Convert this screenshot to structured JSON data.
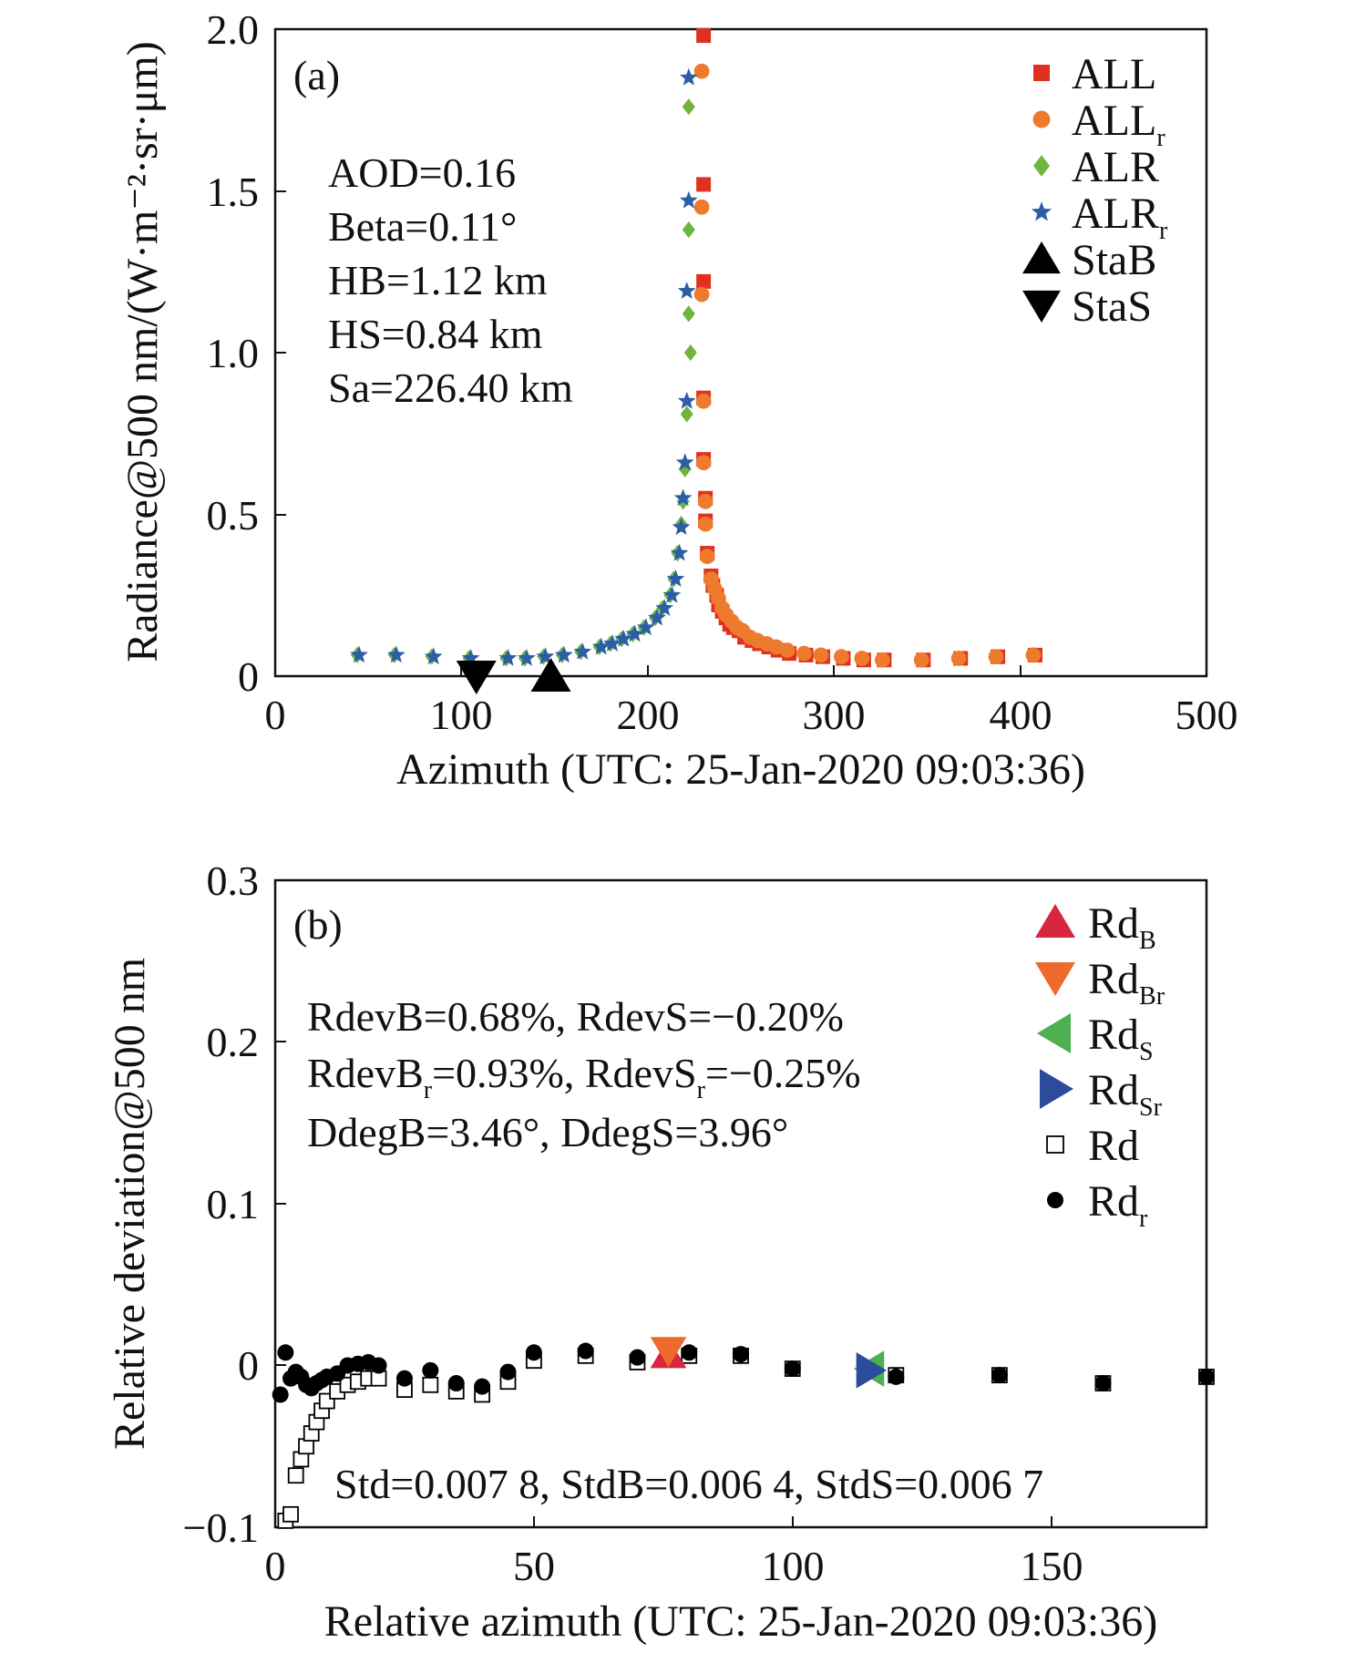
{
  "chart_data": [
    {
      "type": "scatter",
      "panel_label": "(a)",
      "xlabel": "Azimuth (UTC: 25-Jan-2020 09:03:36)",
      "ylabel": "Radiance@500 nm/(W·m⁻²·sr·μm)",
      "xlim": [
        0,
        500
      ],
      "ylim": [
        0,
        2.0
      ],
      "xticks": [
        "0",
        "100",
        "200",
        "300",
        "400",
        "500"
      ],
      "yticks": [
        "0",
        "0.5",
        "1.0",
        "1.5",
        "2.0"
      ],
      "grid": false,
      "legend_position": "top-right",
      "annotations": [
        "AOD=0.16",
        "Beta=0.11°",
        "HB=1.12 km",
        "HS=0.84 km",
        "Sa=226.40 km"
      ],
      "legend": [
        {
          "base": "ALL",
          "sub": "",
          "marker": "square",
          "color": "#e0301e"
        },
        {
          "base": "ALL",
          "sub": "r",
          "marker": "circle",
          "color": "#ee7b2d"
        },
        {
          "base": "ALR",
          "sub": "",
          "marker": "diamond",
          "color": "#6fb43f"
        },
        {
          "base": "ALR",
          "sub": "r",
          "marker": "star",
          "color": "#2c5ea6"
        },
        {
          "base": "StaB",
          "sub": "",
          "marker": "triangle-up",
          "color": "#000000"
        },
        {
          "base": "StaS",
          "sub": "",
          "marker": "triangle-down",
          "color": "#000000"
        }
      ],
      "series": [
        {
          "name": "ALL",
          "marker": "square",
          "color": "#e0301e",
          "x": [
            230,
            230,
            230,
            230,
            230,
            231,
            231,
            232,
            234,
            235,
            237,
            238,
            240,
            242,
            244,
            246,
            249,
            252,
            256,
            260,
            265,
            270,
            276,
            285,
            294,
            305,
            316,
            327,
            348,
            368,
            388,
            408
          ],
          "y": [
            1.98,
            1.52,
            1.22,
            0.86,
            0.67,
            0.55,
            0.48,
            0.38,
            0.31,
            0.28,
            0.25,
            0.22,
            0.2,
            0.18,
            0.16,
            0.15,
            0.14,
            0.12,
            0.11,
            0.1,
            0.09,
            0.08,
            0.07,
            0.065,
            0.06,
            0.055,
            0.05,
            0.05,
            0.05,
            0.055,
            0.06,
            0.065
          ]
        },
        {
          "name": "ALLr",
          "marker": "circle",
          "color": "#ee7b2d",
          "x": [
            229,
            229,
            229,
            230,
            230,
            231,
            231,
            232,
            234,
            236,
            238,
            240,
            242,
            245,
            248,
            251,
            255,
            259,
            264,
            269,
            275,
            284,
            293,
            304,
            315,
            326,
            347,
            367,
            387,
            407
          ],
          "y": [
            1.87,
            1.45,
            1.18,
            0.85,
            0.66,
            0.54,
            0.47,
            0.37,
            0.3,
            0.27,
            0.24,
            0.21,
            0.19,
            0.17,
            0.15,
            0.14,
            0.12,
            0.11,
            0.1,
            0.09,
            0.08,
            0.07,
            0.065,
            0.06,
            0.055,
            0.05,
            0.05,
            0.055,
            0.06,
            0.065
          ]
        },
        {
          "name": "ALR",
          "marker": "diamond",
          "color": "#6fb43f",
          "x": [
            44,
            64,
            84,
            104,
            124,
            134,
            144,
            154,
            164,
            174,
            180,
            186,
            192,
            198,
            204,
            208,
            212,
            214,
            216,
            218,
            219,
            220,
            221,
            222,
            222,
            222,
            223
          ],
          "y": [
            0.065,
            0.065,
            0.06,
            0.055,
            0.055,
            0.055,
            0.06,
            0.065,
            0.075,
            0.09,
            0.1,
            0.115,
            0.13,
            0.15,
            0.18,
            0.21,
            0.25,
            0.3,
            0.38,
            0.47,
            0.54,
            0.64,
            0.81,
            1.12,
            1.38,
            1.76,
            1.0
          ]
        },
        {
          "name": "ALRr",
          "marker": "star",
          "color": "#2c5ea6",
          "x": [
            45,
            65,
            85,
            105,
            125,
            135,
            145,
            155,
            165,
            175,
            181,
            187,
            193,
            199,
            205,
            209,
            213,
            215,
            217,
            218,
            219,
            220,
            221,
            221,
            222,
            222
          ],
          "y": [
            0.065,
            0.065,
            0.06,
            0.055,
            0.055,
            0.055,
            0.06,
            0.065,
            0.075,
            0.09,
            0.1,
            0.115,
            0.13,
            0.15,
            0.18,
            0.21,
            0.25,
            0.3,
            0.38,
            0.46,
            0.55,
            0.66,
            0.85,
            1.19,
            1.47,
            1.85
          ]
        },
        {
          "name": "StaB",
          "marker": "triangle-up",
          "color": "#000000",
          "x": [
            148
          ],
          "y": [
            0.0
          ]
        },
        {
          "name": "StaS",
          "marker": "triangle-down",
          "color": "#000000",
          "x": [
            108
          ],
          "y": [
            0.0
          ]
        }
      ]
    },
    {
      "type": "scatter",
      "panel_label": "(b)",
      "xlabel": "Relative azimuth (UTC: 25-Jan-2020 09:03:36)",
      "ylabel": "Relative deviation@500 nm",
      "xlim": [
        0,
        180
      ],
      "ylim": [
        -0.1,
        0.3
      ],
      "xticks": [
        "0",
        "50",
        "100",
        "150"
      ],
      "yticks": [
        "−0.1",
        "0",
        "0.1",
        "0.2",
        "0.3"
      ],
      "grid": false,
      "legend_position": "top-right",
      "annotations": [
        {
          "segments": [
            {
              "t": "RdevB=0.68%, RdevS=−0.20%"
            }
          ]
        },
        {
          "segments": [
            {
              "t": "RdevB"
            },
            {
              "t": "r",
              "sub": true
            },
            {
              "t": "=0.93%, RdevS"
            },
            {
              "t": "r",
              "sub": true
            },
            {
              "t": "=−0.25%"
            }
          ]
        },
        {
          "segments": [
            {
              "t": "DdegB=3.46°, DdegS=3.96°"
            }
          ]
        },
        {
          "segments": [
            {
              "t": "Std=0.007 8, StdB=0.006 4, StdS=0.006 7"
            }
          ]
        }
      ],
      "legend": [
        {
          "base": "Rd",
          "sub": "B",
          "marker": "triangle-up",
          "color": "#d7263d"
        },
        {
          "base": "Rd",
          "sub": "Br",
          "marker": "triangle-down",
          "color": "#ee6a2c"
        },
        {
          "base": "Rd",
          "sub": "S",
          "marker": "triangle-left",
          "color": "#4caf50"
        },
        {
          "base": "Rd",
          "sub": "Sr",
          "marker": "triangle-right",
          "color": "#2b4c9b"
        },
        {
          "base": "Rd",
          "sub": "",
          "marker": "open-square",
          "color": "#000000"
        },
        {
          "base": "Rd",
          "sub": "r",
          "marker": "dot",
          "color": "#000000"
        }
      ],
      "series": [
        {
          "name": "Rd",
          "marker": "open-square",
          "color": "#000000",
          "x": [
            2,
            3,
            4,
            5,
            6,
            7,
            8,
            9,
            10,
            12,
            14,
            16,
            18,
            20,
            25,
            30,
            35,
            40,
            45,
            50,
            60,
            70,
            80,
            90,
            100,
            120,
            140,
            160,
            180
          ],
          "y": [
            -0.096,
            -0.092,
            -0.068,
            -0.058,
            -0.05,
            -0.042,
            -0.035,
            -0.028,
            -0.022,
            -0.016,
            -0.012,
            -0.01,
            -0.008,
            -0.008,
            -0.015,
            -0.012,
            -0.016,
            -0.018,
            -0.01,
            0.003,
            0.006,
            0.002,
            0.006,
            0.006,
            -0.002,
            -0.006,
            -0.006,
            -0.011,
            -0.007
          ]
        },
        {
          "name": "Rdr",
          "marker": "dot",
          "color": "#000000",
          "x": [
            1,
            2,
            3,
            4,
            5,
            6,
            7,
            8,
            9,
            10,
            12,
            14,
            16,
            18,
            20,
            25,
            30,
            35,
            40,
            45,
            50,
            60,
            70,
            80,
            90,
            100,
            120,
            140,
            160,
            180
          ],
          "y": [
            -0.018,
            0.008,
            -0.008,
            -0.004,
            -0.007,
            -0.012,
            -0.014,
            -0.011,
            -0.009,
            -0.007,
            -0.005,
            0.0,
            0.001,
            0.002,
            0.0,
            -0.008,
            -0.003,
            -0.011,
            -0.013,
            -0.004,
            0.008,
            0.009,
            0.005,
            0.008,
            0.007,
            -0.002,
            -0.007,
            -0.006,
            -0.011,
            -0.007
          ]
        },
        {
          "name": "RdB",
          "marker": "triangle-up",
          "color": "#d7263d",
          "x": [
            76
          ],
          "y": [
            0.007
          ]
        },
        {
          "name": "RdBr",
          "marker": "triangle-down",
          "color": "#ee6a2c",
          "x": [
            76
          ],
          "y": [
            0.009
          ]
        },
        {
          "name": "RdS",
          "marker": "triangle-left",
          "color": "#4caf50",
          "x": [
            115
          ],
          "y": [
            -0.002
          ]
        },
        {
          "name": "RdSr",
          "marker": "triangle-right",
          "color": "#2b4c9b",
          "x": [
            115
          ],
          "y": [
            -0.003
          ]
        }
      ]
    }
  ]
}
